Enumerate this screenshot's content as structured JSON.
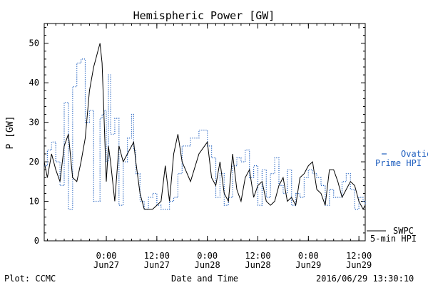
{
  "chart_data": {
    "type": "line",
    "title": "Hemispheric Power [GW]",
    "xlabel": "Date and Time",
    "ylabel": "P [GW]",
    "ylim": [
      0,
      55
    ],
    "xlim": [
      "2016-06-26T09:15",
      "2016-06-29T13:30"
    ],
    "y_ticks": [
      0,
      10,
      20,
      30,
      40,
      50
    ],
    "x_ticks": [
      {
        "time": "2016-06-27T00:00",
        "line1": "0:00",
        "line2": "Jun27"
      },
      {
        "time": "2016-06-27T12:00",
        "line1": "12:00",
        "line2": "Jun27"
      },
      {
        "time": "2016-06-28T00:00",
        "line1": "0:00",
        "line2": "Jun28"
      },
      {
        "time": "2016-06-28T12:00",
        "line1": "12:00",
        "line2": "Jun28"
      },
      {
        "time": "2016-06-29T00:00",
        "line1": "0:00",
        "line2": "Jun29"
      },
      {
        "time": "2016-06-29T12:00",
        "line1": "12:00",
        "line2": "Jun29"
      }
    ],
    "grid": false,
    "legend_position": "right",
    "series": [
      {
        "name": "SWPC 5-min HPI",
        "legend_line1": "SWPC",
        "legend_line2": "5-min HPI",
        "style": "solid",
        "color": "#000000",
        "x": [
          "2016-06-26T09:15",
          "2016-06-26T10:00",
          "2016-06-26T11:00",
          "2016-06-26T12:00",
          "2016-06-26T13:00",
          "2016-06-26T14:00",
          "2016-06-26T15:00",
          "2016-06-26T16:00",
          "2016-06-26T17:00",
          "2016-06-26T18:00",
          "2016-06-26T19:00",
          "2016-06-26T20:00",
          "2016-06-26T21:00",
          "2016-06-26T21:30",
          "2016-06-26T22:00",
          "2016-06-26T22:30",
          "2016-06-26T23:00",
          "2016-06-26T23:30",
          "2016-06-27T00:00",
          "2016-06-27T00:30",
          "2016-06-27T01:00",
          "2016-06-27T02:00",
          "2016-06-27T03:00",
          "2016-06-27T04:00",
          "2016-06-27T05:00",
          "2016-06-27T06:00",
          "2016-06-27T06:30",
          "2016-06-27T07:00",
          "2016-06-27T08:00",
          "2016-06-27T09:00",
          "2016-06-27T10:00",
          "2016-06-27T11:00",
          "2016-06-27T12:00",
          "2016-06-27T13:00",
          "2016-06-27T14:00",
          "2016-06-27T15:00",
          "2016-06-27T16:00",
          "2016-06-27T17:00",
          "2016-06-27T18:00",
          "2016-06-27T20:00",
          "2016-06-27T22:00",
          "2016-06-28T00:00",
          "2016-06-28T01:00",
          "2016-06-28T02:00",
          "2016-06-28T03:00",
          "2016-06-28T04:00",
          "2016-06-28T05:00",
          "2016-06-28T06:00",
          "2016-06-28T07:00",
          "2016-06-28T08:00",
          "2016-06-28T09:00",
          "2016-06-28T10:00",
          "2016-06-28T11:00",
          "2016-06-28T12:00",
          "2016-06-28T13:00",
          "2016-06-28T14:00",
          "2016-06-28T15:00",
          "2016-06-28T16:00",
          "2016-06-28T17:00",
          "2016-06-28T18:00",
          "2016-06-28T19:00",
          "2016-06-28T20:00",
          "2016-06-28T21:00",
          "2016-06-28T22:00",
          "2016-06-28T23:00",
          "2016-06-29T00:00",
          "2016-06-29T01:00",
          "2016-06-29T02:00",
          "2016-06-29T03:00",
          "2016-06-29T04:00",
          "2016-06-29T05:00",
          "2016-06-29T06:00",
          "2016-06-29T07:00",
          "2016-06-29T08:00",
          "2016-06-29T09:00",
          "2016-06-29T10:00",
          "2016-06-29T11:00",
          "2016-06-29T12:00",
          "2016-06-29T13:00",
          "2016-06-29T13:30"
        ],
        "y": [
          20,
          16,
          22,
          18,
          15,
          24,
          27,
          16,
          15,
          20,
          26,
          38,
          44,
          46,
          48,
          50,
          45,
          30,
          15,
          24,
          20,
          10,
          24,
          20,
          22,
          24,
          25,
          20,
          12,
          8,
          8,
          8,
          9,
          10,
          19,
          10,
          22,
          27,
          20,
          15,
          22,
          25,
          16,
          14,
          20,
          12,
          10,
          22,
          13,
          10,
          16,
          18,
          11,
          14,
          15,
          10,
          9,
          10,
          14,
          16,
          10,
          11,
          9,
          16,
          17,
          19,
          20,
          13,
          12,
          9,
          18,
          18,
          15,
          11,
          13,
          15,
          14,
          10,
          8,
          9
        ]
      },
      {
        "name": "Ovation Prime HPI",
        "legend_line1": "Ovation",
        "legend_line2": "Prime HPI",
        "style": "dotted",
        "color": "#1f5fbf",
        "x": [
          "2016-06-26T09:15",
          "2016-06-26T10:00",
          "2016-06-26T11:00",
          "2016-06-26T12:00",
          "2016-06-26T13:00",
          "2016-06-26T14:00",
          "2016-06-26T15:00",
          "2016-06-26T16:00",
          "2016-06-26T17:00",
          "2016-06-26T18:00",
          "2016-06-26T19:00",
          "2016-06-26T20:00",
          "2016-06-26T21:00",
          "2016-06-26T21:30",
          "2016-06-26T22:00",
          "2016-06-26T22:30",
          "2016-06-26T23:00",
          "2016-06-26T23:30",
          "2016-06-27T00:00",
          "2016-06-27T00:30",
          "2016-06-27T01:00",
          "2016-06-27T02:00",
          "2016-06-27T03:00",
          "2016-06-27T04:00",
          "2016-06-27T05:00",
          "2016-06-27T06:00",
          "2016-06-27T06:30",
          "2016-06-27T07:00",
          "2016-06-27T08:00",
          "2016-06-27T09:00",
          "2016-06-27T10:00",
          "2016-06-27T11:00",
          "2016-06-27T12:00",
          "2016-06-27T13:00",
          "2016-06-27T14:00",
          "2016-06-27T15:00",
          "2016-06-27T16:00",
          "2016-06-27T17:00",
          "2016-06-27T18:00",
          "2016-06-27T20:00",
          "2016-06-27T22:00",
          "2016-06-28T00:00",
          "2016-06-28T01:00",
          "2016-06-28T02:00",
          "2016-06-28T03:00",
          "2016-06-28T04:00",
          "2016-06-28T05:00",
          "2016-06-28T06:00",
          "2016-06-28T07:00",
          "2016-06-28T08:00",
          "2016-06-28T09:00",
          "2016-06-28T10:00",
          "2016-06-28T11:00",
          "2016-06-28T12:00",
          "2016-06-28T13:00",
          "2016-06-28T14:00",
          "2016-06-28T15:00",
          "2016-06-28T16:00",
          "2016-06-28T17:00",
          "2016-06-28T18:00",
          "2016-06-28T19:00",
          "2016-06-28T20:00",
          "2016-06-28T21:00",
          "2016-06-28T22:00",
          "2016-06-28T23:00",
          "2016-06-29T00:00",
          "2016-06-29T01:00",
          "2016-06-29T02:00",
          "2016-06-29T03:00",
          "2016-06-29T04:00",
          "2016-06-29T05:00",
          "2016-06-29T06:00",
          "2016-06-29T07:00",
          "2016-06-29T08:00",
          "2016-06-29T09:00",
          "2016-06-29T10:00",
          "2016-06-29T11:00",
          "2016-06-29T12:00",
          "2016-06-29T13:00",
          "2016-06-29T13:30"
        ],
        "y": [
          19,
          23,
          25,
          20,
          14,
          35,
          8,
          39,
          45,
          46,
          30,
          33,
          10,
          10,
          10,
          31,
          32,
          33,
          20,
          42,
          27,
          31,
          9,
          20,
          26,
          32,
          23,
          17,
          10,
          8,
          11,
          12,
          9,
          8,
          8,
          10,
          11,
          17,
          24,
          26,
          28,
          24,
          21,
          11,
          17,
          9,
          11,
          19,
          21,
          20,
          23,
          16,
          19,
          9,
          18,
          11,
          17,
          21,
          14,
          12,
          18,
          9,
          12,
          11,
          16,
          18,
          17,
          16,
          14,
          9,
          13,
          11,
          11,
          15,
          17,
          13,
          8,
          11,
          10,
          9
        ]
      }
    ]
  },
  "footer": {
    "left": "Plot: CCMC",
    "center": "Date and Time",
    "right": "2016/06/29 13:30:10"
  }
}
